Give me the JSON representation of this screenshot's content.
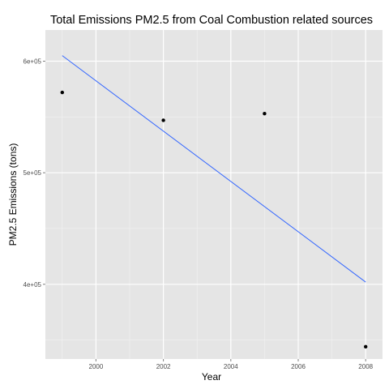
{
  "chart_data": {
    "type": "scatter",
    "title": "Total Emissions PM2.5 from Coal Combustion related sources",
    "xlabel": "Year",
    "ylabel": "PM2.5 Emissions (tons)",
    "xlim": [
      1998.5,
      2008.5
    ],
    "ylim": [
      333000,
      628000
    ],
    "x_ticks": [
      2000,
      2002,
      2004,
      2006,
      2008
    ],
    "x_tick_labels": [
      "2000",
      "2002",
      "2004",
      "2006",
      "2008"
    ],
    "y_ticks": [
      400000,
      500000,
      600000
    ],
    "y_tick_labels": [
      "4e+05",
      "5e+05",
      "6e+05"
    ],
    "grid": true,
    "points": [
      {
        "x": 1999,
        "y": 572000
      },
      {
        "x": 2002,
        "y": 547000
      },
      {
        "x": 2005,
        "y": 553000
      },
      {
        "x": 2008,
        "y": 344000
      }
    ],
    "trend_line": {
      "x": [
        1999,
        2008
      ],
      "y": [
        605000,
        402000
      ]
    },
    "colors": {
      "panel": "#e5e5e5",
      "grid_major": "#ffffff",
      "grid_minor": "#f2f2f2",
      "points": "#000000",
      "trend": "#3366ff"
    }
  }
}
